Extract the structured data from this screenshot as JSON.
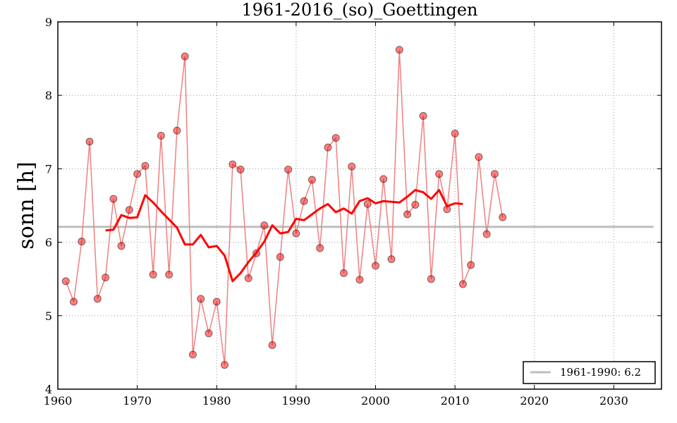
{
  "chart_data": {
    "type": "line",
    "title": "1961-2016_(so)_Goettingen",
    "xlabel": "",
    "ylabel": "sonn [h]",
    "xlim": [
      1960,
      2036
    ],
    "ylim": [
      4,
      9
    ],
    "xticks": [
      1960,
      1970,
      1980,
      1990,
      2000,
      2010,
      2020,
      2030
    ],
    "yticks": [
      4,
      5,
      6,
      7,
      8,
      9
    ],
    "grid": true,
    "legend_position": "bottom-right",
    "colors": {
      "points": "#ff0000",
      "raw_line": "#f08080",
      "moving_average": "#ff0000",
      "reference": "#bebebe"
    },
    "series": [
      {
        "id": "annual",
        "x": [
          1961,
          1962,
          1963,
          1964,
          1965,
          1966,
          1967,
          1968,
          1969,
          1970,
          1971,
          1972,
          1973,
          1974,
          1975,
          1976,
          1977,
          1978,
          1979,
          1980,
          1981,
          1982,
          1983,
          1984,
          1985,
          1986,
          1987,
          1988,
          1989,
          1990,
          1991,
          1992,
          1993,
          1994,
          1995,
          1996,
          1997,
          1998,
          1999,
          2000,
          2001,
          2002,
          2003,
          2004,
          2005,
          2006,
          2007,
          2008,
          2009,
          2010,
          2011,
          2012,
          2013,
          2014,
          2015,
          2016
        ],
        "values": [
          5.47,
          5.19,
          6.01,
          7.37,
          5.23,
          5.52,
          6.59,
          5.95,
          6.44,
          6.93,
          7.04,
          5.56,
          7.45,
          5.56,
          7.52,
          8.53,
          4.47,
          5.23,
          4.76,
          5.19,
          4.33,
          7.06,
          6.99,
          5.51,
          5.85,
          6.23,
          4.6,
          5.8,
          6.99,
          6.12,
          6.56,
          6.85,
          5.92,
          7.29,
          7.42,
          5.58,
          7.03,
          5.49,
          6.52,
          5.68,
          6.86,
          5.77,
          8.62,
          6.38,
          6.51,
          7.72,
          5.5,
          6.93,
          6.45,
          7.48,
          5.43,
          5.69,
          7.16,
          6.11,
          6.93,
          6.34
        ]
      },
      {
        "id": "moving-average",
        "x": [
          1966,
          1967,
          1968,
          1969,
          1970,
          1971,
          1972,
          1973,
          1974,
          1975,
          1976,
          1977,
          1978,
          1979,
          1980,
          1981,
          1982,
          1983,
          1984,
          1985,
          1986,
          1987,
          1988,
          1989,
          1990,
          1991,
          1992,
          1993,
          1994,
          1995,
          1996,
          1997,
          1998,
          1999,
          2000,
          2001,
          2002,
          2003,
          2004,
          2005,
          2006,
          2007,
          2008,
          2009,
          2010,
          2011
        ],
        "values": [
          6.16,
          6.17,
          6.37,
          6.33,
          6.34,
          6.64,
          6.54,
          6.42,
          6.31,
          6.2,
          5.97,
          5.97,
          6.1,
          5.93,
          5.95,
          5.82,
          5.47,
          5.58,
          5.73,
          5.86,
          6.01,
          6.23,
          6.12,
          6.14,
          6.32,
          6.3,
          6.38,
          6.46,
          6.52,
          6.41,
          6.46,
          6.39,
          6.56,
          6.6,
          6.53,
          6.56,
          6.55,
          6.54,
          6.62,
          6.71,
          6.68,
          6.59,
          6.71,
          6.49,
          6.53,
          6.52
        ]
      }
    ],
    "reference_line": {
      "name": "1961-1990: 6.2",
      "value": 6.21,
      "x": [
        1960,
        2035
      ]
    }
  }
}
